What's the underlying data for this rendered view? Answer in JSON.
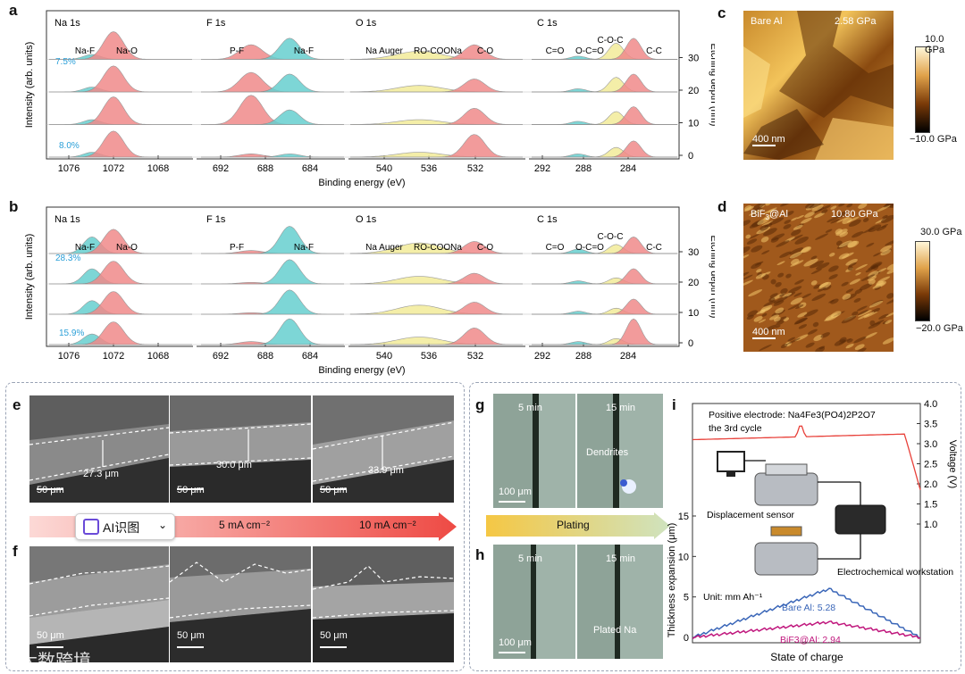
{
  "panels": {
    "a": "a",
    "b": "b",
    "c": "c",
    "d": "d",
    "e": "e",
    "f": "f",
    "g": "g",
    "h": "h",
    "i": "i"
  },
  "xps": {
    "ylabel": "Intensity (arb. units)",
    "xlabel": "Binding energy (eV)",
    "right_axis_label": "Etching depth (nm)",
    "depth_ticks": [
      "30",
      "20",
      "10",
      "0"
    ],
    "regions": [
      {
        "title": "Na 1s",
        "ticks": [
          "1076",
          "1072",
          "1068"
        ]
      },
      {
        "title": "F 1s",
        "ticks": [
          "692",
          "688",
          "684"
        ]
      },
      {
        "title": "O 1s",
        "ticks": [
          "540",
          "536",
          "532"
        ]
      },
      {
        "title": "C 1s",
        "ticks": [
          "292",
          "288",
          "284"
        ]
      }
    ],
    "a": {
      "labels": [
        "Na-F",
        "Na-O",
        "P-F",
        "Na-F",
        "Na Auger",
        "RO-COONa",
        "C-O",
        "C=O",
        "O-C=O",
        "C-O-C",
        "C-C"
      ],
      "pct_top": "7.5%",
      "pct_bottom": "8.0%"
    },
    "b": {
      "labels": [
        "Na-F",
        "Na-O",
        "P-F",
        "Na-F",
        "Na Auger",
        "RO-COONa",
        "C-O",
        "C=O",
        "O-C=O",
        "C-O-C",
        "C-C"
      ],
      "pct_top": "28.3%",
      "pct_bottom": "15.9%"
    }
  },
  "afm": {
    "c": {
      "title": "Bare Al",
      "value": "2.58 GPa",
      "scale": "400 nm",
      "cb_top": "10.0 GPa",
      "cb_bottom": "−10.0 GPa"
    },
    "d": {
      "title": "BiF3@Al",
      "value": "10.80 GPa",
      "scale": "400 nm",
      "cb_top": "30.0 GPa",
      "cb_bottom": "−20.0 GPa"
    }
  },
  "sem": {
    "e": {
      "thickness": [
        "27.3 μm",
        "30.0 μm",
        "33.9 μm"
      ],
      "scale": "50 μm"
    },
    "f": {
      "scale": "50 μm"
    },
    "current_labels": [
      "5 mA cm⁻²",
      "10 mA cm⁻²"
    ],
    "ai_badge": "AI识图"
  },
  "optical": {
    "g": {
      "times": [
        "5 min",
        "15 min"
      ],
      "scale": "100 μm",
      "annotation": "Dendrites"
    },
    "h": {
      "times": [
        "5 min",
        "15 min"
      ],
      "scale": "100 μm",
      "annotation": "Plated Na"
    },
    "arrow_label": "Plating"
  },
  "panel_i": {
    "positive_electrode": "Positive electrode: Na4Fe3(PO4)2P2O7",
    "cycle": "the 3rd cycle",
    "voltage_label": "Voltage (V)",
    "voltage_ticks": [
      "4.0",
      "3.5",
      "3.0",
      "2.5",
      "2.0",
      "1.5",
      "1.0"
    ],
    "left_label": "Thickness expansion (μm)",
    "left_ticks": [
      "15",
      "10",
      "5",
      "0"
    ],
    "xlabel": "State of charge",
    "unit": "Unit: mm Ah⁻¹",
    "bare": "Bare Al: 5.28",
    "bif": "BiF3@Al: 2.94",
    "displacement": "Displacement sensor",
    "workstation": "Electrochemical workstation",
    "colors": {
      "voltage": "#e8413a",
      "bare": "#3a66b8",
      "bif": "#c0177d"
    }
  },
  "watermark": "大数跨境"
}
